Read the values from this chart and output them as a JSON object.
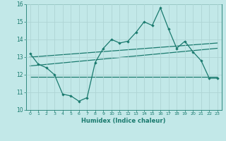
{
  "title": "",
  "xlabel": "Humidex (Indice chaleur)",
  "ylabel": "",
  "bg_color": "#c2e8e8",
  "line_color": "#1a7a6e",
  "grid_color": "#aed4d4",
  "x_values": [
    0,
    1,
    2,
    3,
    4,
    5,
    6,
    7,
    8,
    9,
    10,
    11,
    12,
    13,
    14,
    15,
    16,
    17,
    18,
    19,
    20,
    21,
    22,
    23
  ],
  "y_main": [
    13.2,
    12.6,
    12.4,
    12.0,
    10.9,
    10.8,
    10.5,
    10.7,
    12.7,
    13.5,
    14.0,
    13.8,
    13.9,
    14.4,
    15.0,
    14.8,
    15.8,
    14.6,
    13.5,
    13.9,
    13.3,
    12.8,
    11.8,
    11.8
  ],
  "trend1_x": [
    0,
    23
  ],
  "trend1_y": [
    11.9,
    11.9
  ],
  "trend2_x": [
    0,
    23
  ],
  "trend2_y": [
    12.5,
    13.5
  ],
  "trend3_x": [
    0,
    23
  ],
  "trend3_y": [
    13.0,
    13.8
  ],
  "ylim": [
    10,
    16
  ],
  "xlim": [
    -0.5,
    23.5
  ],
  "yticks": [
    10,
    11,
    12,
    13,
    14,
    15,
    16
  ],
  "xticks": [
    0,
    1,
    2,
    3,
    4,
    5,
    6,
    7,
    8,
    9,
    10,
    11,
    12,
    13,
    14,
    15,
    16,
    17,
    18,
    19,
    20,
    21,
    22,
    23
  ],
  "marker_size": 2.2,
  "line_width": 0.9
}
